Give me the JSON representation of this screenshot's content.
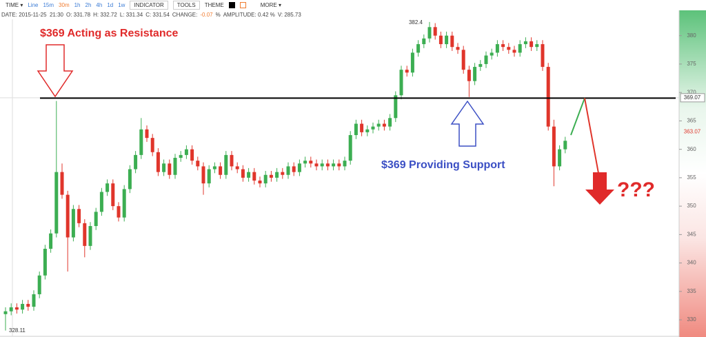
{
  "toolbar": {
    "time": "TIME ▾",
    "intervals": [
      "Line",
      "15m",
      "30m",
      "1h",
      "2h",
      "4h",
      "1d",
      "1w"
    ],
    "selected": 2,
    "indicator": "INDICATOR",
    "tools": "TOOLS",
    "theme": "THEME",
    "more": "MORE ▾"
  },
  "info": [
    "DATE: 2015-11-25  21:30",
    "O: 331.78",
    "H: 332.72",
    "L: 331.34",
    "C: 331.54",
    "CHANGE:",
    "-0.07",
    "%",
    "AMPLITUDE: 0.42 %",
    "V: 285.73"
  ],
  "chart_data": {
    "type": "candlestick",
    "up_color": "#3cae52",
    "down_color": "#e0352b",
    "ylim": [
      327.1,
      383.6
    ],
    "yticks": [
      330,
      335,
      340,
      345,
      350,
      355,
      360,
      365,
      370,
      375,
      380
    ],
    "open": [
      331.0,
      331.5,
      332.2,
      331.8,
      332.8,
      332.3,
      334.5,
      337.8,
      342.5,
      345.2,
      356.0,
      352.0,
      344.5,
      349.5,
      347.0,
      343.0,
      346.5,
      349.0,
      352.5,
      354.0,
      350.0,
      348.0,
      353.0,
      356.5,
      359.0,
      363.5,
      362.0,
      359.5,
      356.0,
      357.5,
      355.5,
      358.5,
      359.0,
      360.0,
      358.0,
      357.0,
      354.0,
      356.5,
      357.0,
      355.5,
      359.0,
      357.0,
      356.5,
      355.0,
      356.0,
      354.5,
      354.0,
      355.5,
      355.0,
      356.0,
      355.5,
      357.0,
      356.0,
      357.5,
      358.0,
      357.5,
      357.0,
      357.5,
      357.0,
      357.5,
      357.0,
      358.0,
      362.5,
      364.5,
      363.0,
      363.5,
      364.0,
      364.5,
      364.0,
      365.5,
      369.5,
      374.0,
      373.5,
      377.0,
      378.5,
      379.5,
      381.5,
      380.0,
      378.5,
      380.0,
      378.0,
      377.5,
      374.0,
      372.0,
      374.5,
      375.0,
      376.5,
      377.0,
      378.5,
      378.0,
      377.5,
      377.0,
      378.5,
      379.0,
      378.0,
      378.5,
      374.5,
      364.0,
      357.0,
      360.0
    ],
    "high": [
      332.2,
      332.9,
      332.9,
      333.5,
      333.5,
      335.2,
      338.5,
      343.2,
      345.9,
      368.5,
      357.5,
      352.7,
      350.2,
      350.2,
      347.7,
      347.2,
      349.7,
      353.2,
      354.7,
      354.7,
      350.7,
      353.7,
      357.2,
      359.7,
      365.5,
      364.2,
      362.7,
      360.2,
      358.2,
      358.2,
      359.2,
      359.7,
      360.7,
      360.7,
      358.7,
      357.7,
      357.2,
      357.7,
      357.7,
      359.7,
      359.7,
      357.7,
      357.2,
      356.7,
      356.7,
      355.2,
      356.2,
      356.2,
      356.7,
      356.7,
      357.7,
      357.7,
      358.2,
      358.7,
      358.7,
      358.2,
      358.2,
      358.2,
      358.2,
      358.2,
      358.7,
      363.2,
      365.2,
      365.2,
      364.2,
      364.7,
      365.2,
      365.2,
      366.2,
      370.2,
      374.7,
      374.7,
      377.7,
      379.2,
      380.2,
      382.4,
      382.2,
      380.7,
      380.7,
      380.7,
      378.7,
      378.2,
      374.7,
      375.2,
      375.7,
      377.2,
      377.7,
      379.2,
      379.2,
      378.7,
      378.2,
      379.2,
      379.7,
      379.7,
      379.2,
      379.2,
      375.2,
      365.2,
      360.7,
      362.2
    ],
    "low": [
      328.11,
      330.8,
      331.1,
      331.1,
      331.6,
      331.6,
      333.8,
      337.1,
      341.8,
      344.5,
      351.3,
      338.5,
      343.8,
      346.3,
      341.0,
      342.3,
      345.8,
      348.3,
      351.8,
      349.3,
      347.3,
      347.3,
      352.3,
      355.8,
      358.3,
      361.3,
      358.8,
      355.3,
      355.3,
      354.8,
      354.8,
      357.8,
      358.3,
      357.3,
      356.3,
      352.0,
      353.3,
      355.8,
      354.8,
      354.8,
      356.3,
      355.8,
      354.3,
      354.3,
      353.8,
      353.3,
      353.3,
      354.3,
      354.3,
      354.8,
      354.8,
      355.3,
      355.3,
      356.8,
      356.8,
      356.3,
      356.3,
      356.3,
      356.3,
      356.3,
      356.3,
      357.3,
      361.8,
      362.3,
      362.3,
      362.8,
      363.3,
      363.3,
      363.3,
      364.8,
      368.8,
      372.8,
      372.8,
      376.3,
      377.8,
      378.8,
      379.3,
      377.8,
      377.8,
      377.3,
      376.8,
      373.3,
      369.2,
      371.3,
      373.8,
      374.3,
      375.8,
      376.3,
      377.3,
      376.8,
      376.3,
      376.3,
      377.8,
      377.3,
      377.3,
      373.8,
      363.3,
      353.5,
      356.3,
      359.3
    ],
    "close": [
      331.5,
      332.2,
      331.8,
      332.8,
      332.3,
      334.5,
      337.8,
      342.5,
      345.2,
      356.0,
      352.0,
      344.5,
      349.5,
      347.0,
      343.0,
      346.5,
      349.0,
      352.5,
      354.0,
      350.0,
      348.0,
      353.0,
      356.5,
      359.0,
      363.5,
      362.0,
      359.5,
      356.0,
      357.5,
      355.5,
      358.5,
      359.0,
      360.0,
      358.0,
      357.0,
      354.0,
      356.5,
      357.0,
      355.5,
      359.0,
      357.0,
      356.5,
      355.0,
      356.0,
      354.5,
      354.0,
      355.5,
      355.0,
      356.0,
      355.5,
      357.0,
      356.0,
      357.5,
      358.0,
      357.5,
      357.0,
      357.5,
      357.0,
      357.5,
      357.0,
      358.0,
      362.5,
      364.5,
      363.0,
      363.5,
      364.0,
      364.5,
      364.0,
      365.5,
      369.5,
      374.0,
      373.5,
      377.0,
      378.5,
      379.5,
      381.5,
      380.0,
      378.5,
      380.0,
      378.0,
      377.5,
      374.0,
      372.0,
      374.5,
      375.0,
      376.5,
      377.0,
      378.5,
      378.0,
      377.5,
      377.0,
      378.5,
      379.0,
      378.0,
      378.5,
      374.5,
      364.0,
      357.0,
      360.0,
      361.5
    ],
    "max_label": 382.4,
    "min_label": 328.11,
    "last_price": 369.07,
    "mark_price": 363.07,
    "level": 369,
    "projection": [
      362.5,
      369,
      354.5
    ],
    "resistance_text": "$369 Acting as Resistance",
    "support_text": "$369 Providing Support",
    "question_text": "???"
  }
}
